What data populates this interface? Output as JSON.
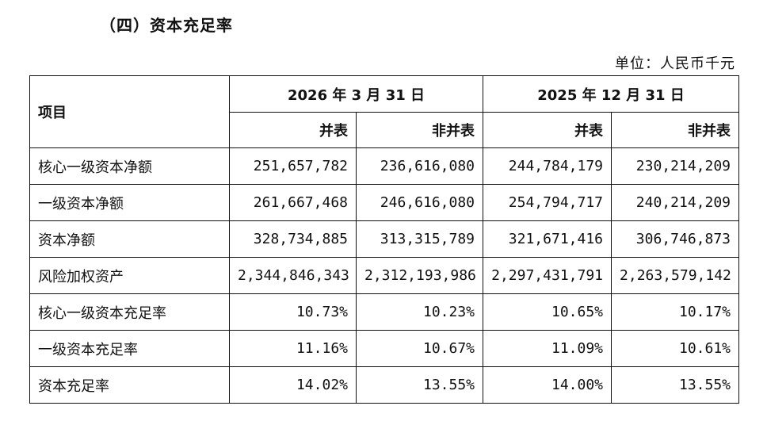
{
  "section_title": "（四）资本充足率",
  "unit_label": "单位：人民币千元",
  "table": {
    "item_header": "项目",
    "period_headers": [
      "2026 年 3 月 31 日",
      "2025 年 12 月 31 日"
    ],
    "sub_headers": [
      "并表",
      "非并表",
      "并表",
      "非并表"
    ],
    "rows": [
      {
        "label": "核心一级资本净额",
        "values": [
          "251,657,782",
          "236,616,080",
          "244,784,179",
          "230,214,209"
        ]
      },
      {
        "label": "一级资本净额",
        "values": [
          "261,667,468",
          "246,616,080",
          "254,794,717",
          "240,214,209"
        ]
      },
      {
        "label": "资本净额",
        "values": [
          "328,734,885",
          "313,315,789",
          "321,671,416",
          "306,746,873"
        ]
      },
      {
        "label": "风险加权资产",
        "values": [
          "2,344,846,343",
          "2,312,193,986",
          "2,297,431,791",
          "2,263,579,142"
        ]
      },
      {
        "label": "核心一级资本充足率",
        "values": [
          "10.73%",
          "10.23%",
          "10.65%",
          "10.17%"
        ]
      },
      {
        "label": "一级资本充足率",
        "values": [
          "11.16%",
          "10.67%",
          "11.09%",
          "10.61%"
        ]
      },
      {
        "label": "资本充足率",
        "values": [
          "14.02%",
          "13.55%",
          "14.00%",
          "13.55%"
        ]
      }
    ]
  }
}
